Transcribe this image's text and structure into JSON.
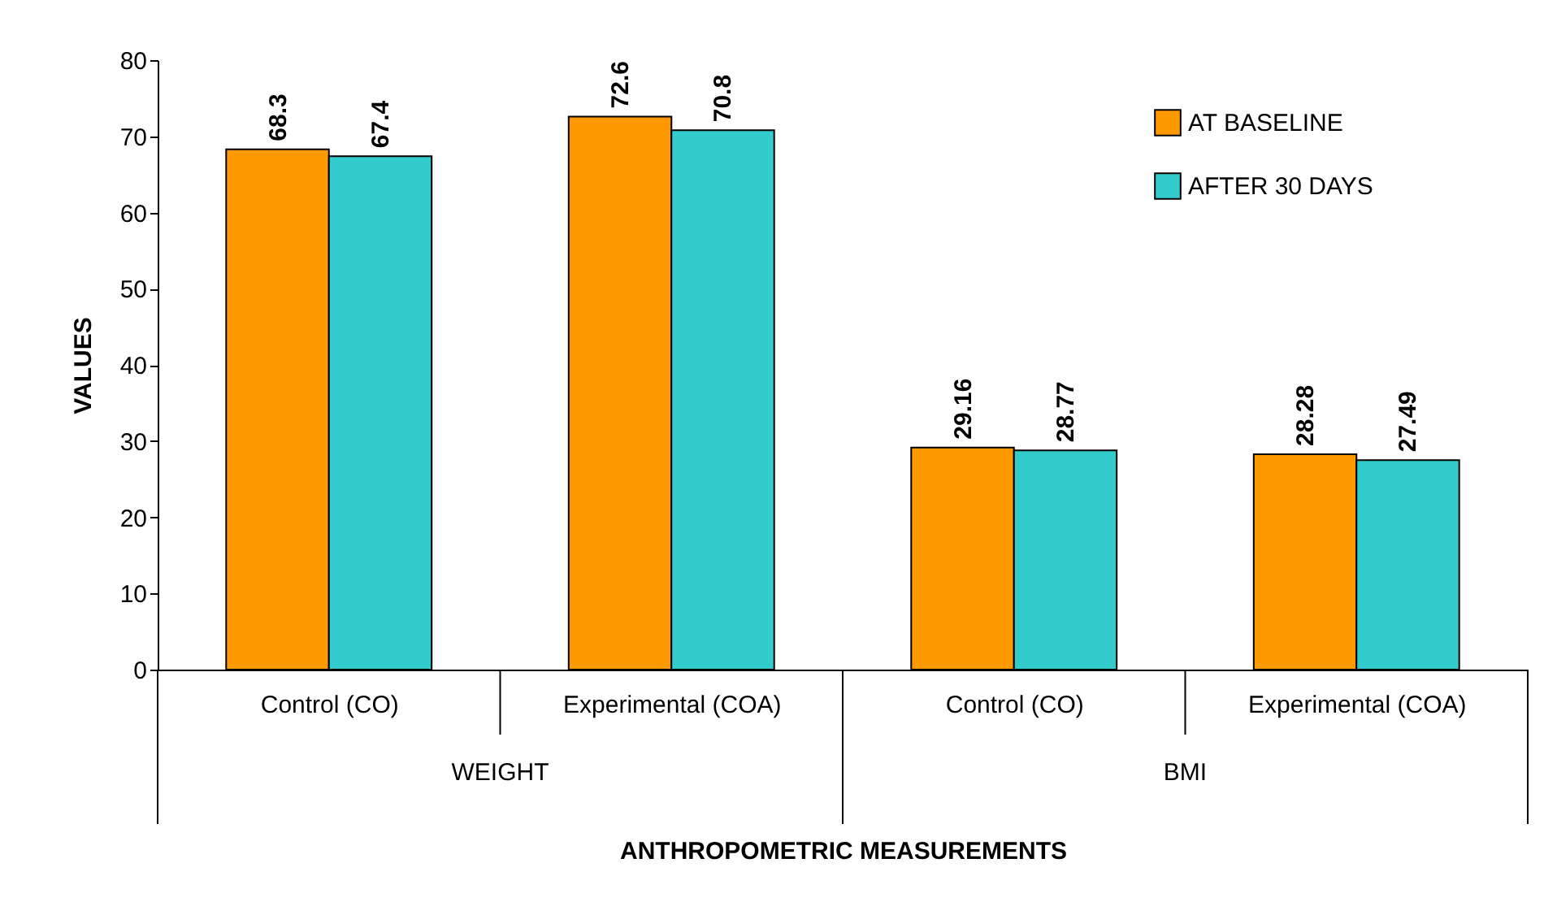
{
  "chart_data": {
    "type": "bar",
    "xlabel": "ANTHROPOMETRIC MEASUREMENTS",
    "ylabel": "VALUES",
    "categories": [
      "Control (CO)",
      "Experimental (COA)",
      "Control (CO)",
      "Experimental (COA)"
    ],
    "annotations": [
      "WEIGHT",
      "BMI"
    ],
    "series": [
      {
        "name": "AT BASELINE",
        "color": "#ff9900",
        "values": [
          68.3,
          72.6,
          29.16,
          28.28
        ]
      },
      {
        "name": "AFTER 30 DAYS",
        "color": "#33cccc",
        "values": [
          67.4,
          70.8,
          28.77,
          27.49
        ]
      }
    ],
    "ylim": [
      0,
      80
    ],
    "yticks": [
      0,
      10,
      20,
      30,
      40,
      50,
      60,
      70,
      80
    ],
    "data_labels": true,
    "grid": false,
    "legend": "top right"
  }
}
